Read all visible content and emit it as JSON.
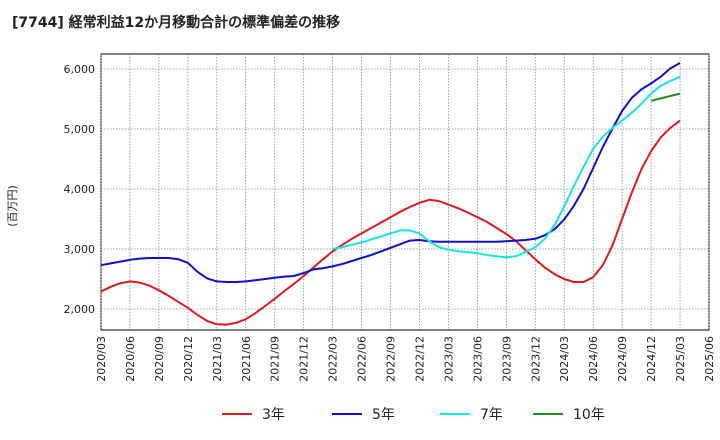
{
  "chart_data": {
    "type": "line",
    "title": "[7744]  経常利益12か月移動合計の標準偏差の推移",
    "ylabel": "(百万円)",
    "xlabel": "",
    "ylim": [
      1650,
      6250
    ],
    "y_ticks": [
      2000,
      3000,
      4000,
      5000,
      6000
    ],
    "y_tick_labels": [
      "2,000",
      "3,000",
      "4,000",
      "5,000",
      "6,000"
    ],
    "x_ticks": [
      "2020/03",
      "2020/06",
      "2020/09",
      "2020/12",
      "2021/03",
      "2021/06",
      "2021/09",
      "2021/12",
      "2022/03",
      "2022/06",
      "2022/09",
      "2022/12",
      "2023/03",
      "2023/06",
      "2023/09",
      "2023/12",
      "2024/03",
      "2024/06",
      "2024/09",
      "2024/12",
      "2025/03",
      "2025/06"
    ],
    "grid": true,
    "legend_position": "bottom",
    "series": [
      {
        "name": "3年",
        "color": "#e0191b",
        "x": [
          "2020/03",
          "2020/04",
          "2020/05",
          "2020/06",
          "2020/07",
          "2020/08",
          "2020/09",
          "2020/10",
          "2020/11",
          "2020/12",
          "2021/01",
          "2021/02",
          "2021/03",
          "2021/04",
          "2021/05",
          "2021/06",
          "2021/07",
          "2021/08",
          "2021/09",
          "2021/10",
          "2021/11",
          "2021/12",
          "2022/01",
          "2022/02",
          "2022/03",
          "2022/04",
          "2022/05",
          "2022/06",
          "2022/07",
          "2022/08",
          "2022/09",
          "2022/10",
          "2022/11",
          "2022/12",
          "2023/01",
          "2023/02",
          "2023/03",
          "2023/04",
          "2023/05",
          "2023/06",
          "2023/07",
          "2023/08",
          "2023/09",
          "2023/10",
          "2023/11",
          "2023/12",
          "2024/01",
          "2024/02",
          "2024/03",
          "2024/04",
          "2024/05",
          "2024/06",
          "2024/07",
          "2024/08",
          "2024/09",
          "2024/10",
          "2024/11",
          "2024/12",
          "2025/01",
          "2025/02",
          "2025/03"
        ],
        "values": [
          2290,
          2370,
          2430,
          2460,
          2440,
          2390,
          2310,
          2220,
          2120,
          2020,
          1900,
          1800,
          1745,
          1740,
          1770,
          1830,
          1930,
          2050,
          2170,
          2300,
          2420,
          2550,
          2690,
          2830,
          2960,
          3070,
          3170,
          3260,
          3350,
          3440,
          3530,
          3620,
          3700,
          3770,
          3820,
          3800,
          3740,
          3680,
          3610,
          3530,
          3450,
          3350,
          3250,
          3130,
          2980,
          2830,
          2690,
          2580,
          2500,
          2450,
          2450,
          2530,
          2730,
          3060,
          3500,
          3940,
          4330,
          4630,
          4860,
          5020,
          5140
        ]
      },
      {
        "name": "5年",
        "color": "#1010c8",
        "x": [
          "2020/03",
          "2020/04",
          "2020/05",
          "2020/06",
          "2020/07",
          "2020/08",
          "2020/09",
          "2020/10",
          "2020/11",
          "2020/12",
          "2021/01",
          "2021/02",
          "2021/03",
          "2021/04",
          "2021/05",
          "2021/06",
          "2021/07",
          "2021/08",
          "2021/09",
          "2021/10",
          "2021/11",
          "2021/12",
          "2022/01",
          "2022/02",
          "2022/03",
          "2022/04",
          "2022/05",
          "2022/06",
          "2022/07",
          "2022/08",
          "2022/09",
          "2022/10",
          "2022/11",
          "2022/12",
          "2023/01",
          "2023/02",
          "2023/03",
          "2023/04",
          "2023/05",
          "2023/06",
          "2023/07",
          "2023/08",
          "2023/09",
          "2023/10",
          "2023/11",
          "2023/12",
          "2024/01",
          "2024/02",
          "2024/03",
          "2024/04",
          "2024/05",
          "2024/06",
          "2024/07",
          "2024/08",
          "2024/09",
          "2024/10",
          "2024/11",
          "2024/12",
          "2025/01",
          "2025/02",
          "2025/03"
        ],
        "values": [
          2730,
          2760,
          2790,
          2820,
          2840,
          2850,
          2850,
          2850,
          2830,
          2770,
          2620,
          2510,
          2460,
          2450,
          2450,
          2460,
          2480,
          2500,
          2520,
          2540,
          2550,
          2600,
          2660,
          2680,
          2710,
          2750,
          2800,
          2850,
          2900,
          2960,
          3020,
          3080,
          3140,
          3150,
          3130,
          3120,
          3120,
          3120,
          3120,
          3120,
          3120,
          3120,
          3130,
          3140,
          3150,
          3170,
          3230,
          3330,
          3490,
          3720,
          4000,
          4350,
          4700,
          5010,
          5300,
          5520,
          5660,
          5760,
          5870,
          6010,
          6100
        ]
      },
      {
        "name": "7年",
        "color": "#14e6e6",
        "x": [
          "2022/03",
          "2022/04",
          "2022/05",
          "2022/06",
          "2022/07",
          "2022/08",
          "2022/09",
          "2022/10",
          "2022/11",
          "2022/12",
          "2023/01",
          "2023/02",
          "2023/03",
          "2023/04",
          "2023/05",
          "2023/06",
          "2023/07",
          "2023/08",
          "2023/09",
          "2023/10",
          "2023/11",
          "2023/12",
          "2024/01",
          "2024/02",
          "2024/03",
          "2024/04",
          "2024/05",
          "2024/06",
          "2024/07",
          "2024/08",
          "2024/09",
          "2024/10",
          "2024/11",
          "2024/12",
          "2025/01",
          "2025/02",
          "2025/03"
        ],
        "values": [
          3000,
          3030,
          3070,
          3110,
          3160,
          3210,
          3260,
          3310,
          3310,
          3260,
          3130,
          3030,
          2990,
          2960,
          2950,
          2930,
          2900,
          2880,
          2860,
          2880,
          2950,
          3030,
          3170,
          3400,
          3710,
          4050,
          4370,
          4670,
          4870,
          5020,
          5140,
          5270,
          5420,
          5590,
          5720,
          5800,
          5870
        ]
      },
      {
        "name": "10年",
        "color": "#228b22",
        "x": [
          "2024/12",
          "2025/01",
          "2025/02",
          "2025/03"
        ],
        "values": [
          5470,
          5510,
          5550,
          5590
        ]
      }
    ]
  }
}
